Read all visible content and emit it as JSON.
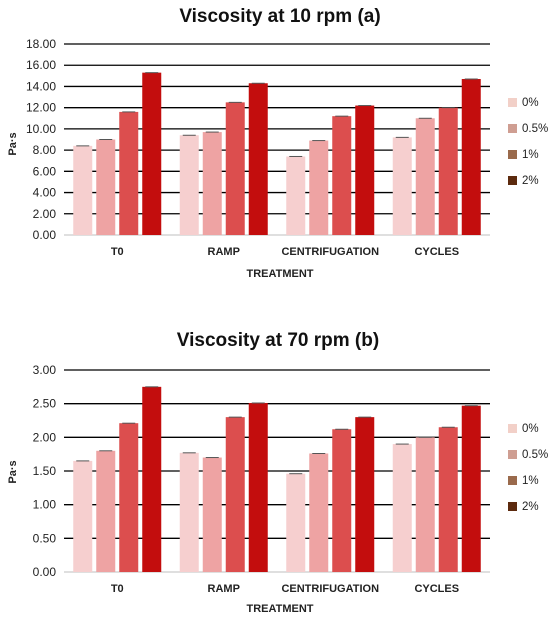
{
  "chart_data": [
    {
      "type": "bar",
      "title": "Viscosity at 10 rpm (a)",
      "xlabel": "TREATMENT",
      "ylabel": "Pa·s",
      "categories": [
        "T0",
        "RAMP",
        "CENTRIFUGATION",
        "CYCLES"
      ],
      "ylim": [
        0,
        18
      ],
      "yticks": [
        "0.00",
        "2.00",
        "4.00",
        "6.00",
        "8.00",
        "10.00",
        "12.00",
        "14.00",
        "16.00",
        "18.00"
      ],
      "grid": true,
      "legend_position": "right",
      "series": [
        {
          "name": "0%",
          "color": "#f6cfcf",
          "values": [
            8.4,
            9.4,
            7.4,
            9.2
          ]
        },
        {
          "name": "0.5%",
          "color": "#eea3a3",
          "values": [
            9.0,
            9.7,
            8.9,
            11.0
          ]
        },
        {
          "name": "1%",
          "color": "#dc4e4e",
          "values": [
            11.6,
            12.5,
            11.2,
            12.0
          ]
        },
        {
          "name": "2%",
          "color": "#c30d0d",
          "values": [
            15.3,
            14.3,
            12.2,
            14.7
          ]
        }
      ],
      "legend_swatches": [
        "#f2d0c8",
        "#cf9e92",
        "#9a6a4c",
        "#5c2a0e"
      ]
    },
    {
      "type": "bar",
      "title": "Viscosity at 70 rpm (b)",
      "xlabel": "TREATMENT",
      "ylabel": "Pa·s",
      "categories": [
        "T0",
        "RAMP",
        "CENTRIFUGATION",
        "CYCLES"
      ],
      "ylim": [
        0,
        3
      ],
      "yticks": [
        "0.00",
        "0.50",
        "1.00",
        "1.50",
        "2.00",
        "2.50",
        "3.00"
      ],
      "grid": true,
      "legend_position": "right",
      "series": [
        {
          "name": "0%",
          "color": "#f6cfcf",
          "values": [
            1.65,
            1.77,
            1.46,
            1.9
          ]
        },
        {
          "name": "0.5%",
          "color": "#eea3a3",
          "values": [
            1.8,
            1.7,
            1.76,
            2.0
          ]
        },
        {
          "name": "1%",
          "color": "#dc4e4e",
          "values": [
            2.21,
            2.3,
            2.12,
            2.15
          ]
        },
        {
          "name": "2%",
          "color": "#c30d0d",
          "values": [
            2.75,
            2.51,
            2.3,
            2.47
          ]
        }
      ],
      "legend_swatches": [
        "#f2d0c8",
        "#cf9e92",
        "#9a6a4c",
        "#5c2a0e"
      ]
    }
  ]
}
